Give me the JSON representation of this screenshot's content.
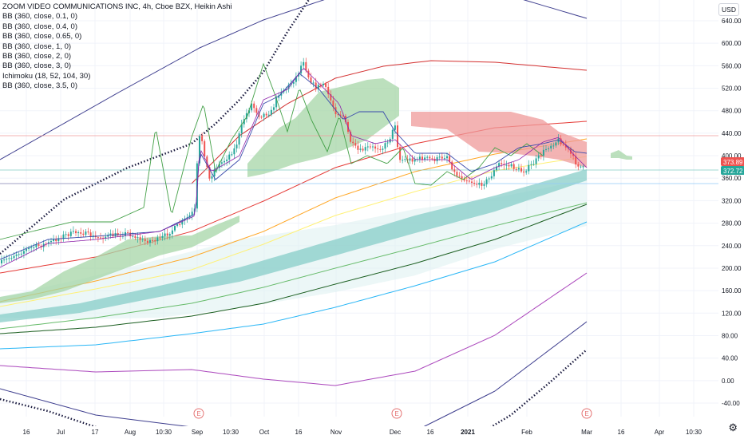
{
  "header": {
    "title": "ZOOM VIDEO COMMUNICATIONS INC, 4h, Cboe BZX, Heikin Ashi",
    "indicators": [
      "BB (360, close, 0.1, 0)",
      "BB (360, close, 0.4, 0)",
      "BB (360, close, 0.65, 0)",
      "BB (360, close, 1, 0)",
      "BB (360, close, 2, 0)",
      "BB (360, close, 3, 0)",
      "Ichimoku (18, 52, 104, 30)",
      "BB (360, close, 3.5, 0)"
    ]
  },
  "currency": "USD",
  "settings_icon": "gear-icon",
  "chart_data": {
    "type": "candlestick",
    "title": "ZOOM VIDEO COMMUNICATIONS INC, 4h, Cboe BZX, Heikin Ashi",
    "y_axis": {
      "ticks": [
        "640.00",
        "600.00",
        "560.00",
        "520.00",
        "480.00",
        "440.00",
        "400.00",
        "360.00",
        "320.00",
        "280.00",
        "240.00",
        "200.00",
        "160.00",
        "120.00",
        "80.00",
        "40.00",
        "0.00",
        "-40.00"
      ],
      "range": [
        -60,
        660
      ]
    },
    "x_axis": {
      "ticks": [
        "16",
        "Jul",
        "17",
        "Aug",
        "10:30",
        "Sep",
        "10:30",
        "Oct",
        "16",
        "Nov",
        "Dec",
        "16",
        "2021",
        "Feb",
        "Mar",
        "16",
        "Apr",
        "10:30"
      ]
    },
    "price_labels": [
      {
        "value": "373.89",
        "color": "#ef5350"
      },
      {
        "value": "372.72",
        "color": "#26a69a"
      }
    ],
    "earnings_markers": [
      "E",
      "E",
      "E"
    ],
    "price_path": [
      [
        "Jun 10",
        225
      ],
      [
        "Jun 20",
        240
      ],
      [
        "Jul 1",
        252
      ],
      [
        "Jul 15",
        265
      ],
      [
        "Jul 25",
        258
      ],
      [
        "Aug 5",
        262
      ],
      [
        "Aug 15",
        255
      ],
      [
        "Aug 25",
        270
      ],
      [
        "Aug 31",
        290
      ],
      [
        "Sep 1",
        420
      ],
      [
        "Sep 5",
        380
      ],
      [
        "Sep 10",
        360
      ],
      [
        "Sep 20",
        390
      ],
      [
        "Sep 28",
        440
      ],
      [
        "Oct 5",
        480
      ],
      [
        "Oct 12",
        520
      ],
      [
        "Oct 17",
        560
      ],
      [
        "Oct 19",
        590
      ],
      [
        "Oct 22",
        540
      ],
      [
        "Oct 28",
        510
      ],
      [
        "Nov 2",
        490
      ],
      [
        "Nov 6",
        450
      ],
      [
        "Nov 10",
        400
      ],
      [
        "Nov 16",
        410
      ],
      [
        "Nov 24",
        420
      ],
      [
        "Dec 1",
        430
      ],
      [
        "Dec 4",
        470
      ],
      [
        "Dec 8",
        390
      ],
      [
        "Dec 15",
        400
      ],
      [
        "Dec 24",
        390
      ],
      [
        "Jan 1",
        360
      ],
      [
        "Jan 8",
        350
      ],
      [
        "Jan 15",
        375
      ],
      [
        "Jan 22",
        380
      ],
      [
        "Jan 29",
        380
      ],
      [
        "Feb 5",
        390
      ],
      [
        "Feb 12",
        420
      ],
      [
        "Feb 18",
        445
      ],
      [
        "Feb 24",
        415
      ],
      [
        "Feb 28",
        375
      ],
      [
        "Mar 1",
        373
      ]
    ],
    "series": [
      {
        "name": "BB (360, close, 3.5, 0)",
        "color": "#26a69a"
      },
      {
        "name": "Ichimoku (18, 52, 104, 30)",
        "color": "#43a047"
      }
    ],
    "colors": {
      "up": "#26a69a",
      "down": "#ef5350",
      "cloud_up": "#a5d6a7",
      "cloud_down": "#ef9a9a",
      "band_fill": "#e0f2f1",
      "band_core": "#80cbc4"
    }
  }
}
